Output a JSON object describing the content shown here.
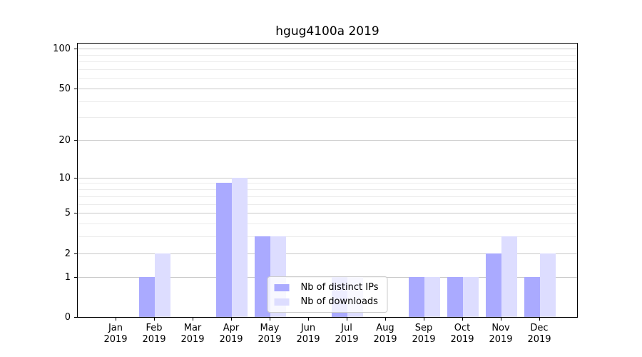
{
  "chart_data": {
    "type": "bar",
    "title": "hgug4100a 2019",
    "xlabel": "",
    "ylabel": "",
    "scale": "log1p",
    "grid": true,
    "legend_position": "lower center",
    "ylim": [
      0,
      112
    ],
    "y_ticks": [
      0,
      1,
      2,
      5,
      10,
      20,
      50,
      100
    ],
    "y_minor_ticks": [
      3,
      4,
      6,
      7,
      8,
      9,
      30,
      40,
      60,
      70,
      80,
      90
    ],
    "categories": [
      "Jan\n2019",
      "Feb\n2019",
      "Mar\n2019",
      "Apr\n2019",
      "May\n2019",
      "Jun\n2019",
      "Jul\n2019",
      "Aug\n2019",
      "Sep\n2019",
      "Oct\n2019",
      "Nov\n2019",
      "Dec\n2019"
    ],
    "series": [
      {
        "name": "Nb of distinct IPs",
        "color": "#aaaaff",
        "values": [
          0,
          1,
          0,
          9,
          3,
          0,
          1,
          0,
          1,
          1,
          2,
          1
        ]
      },
      {
        "name": "Nb of downloads",
        "color": "#ddddff",
        "values": [
          0,
          2,
          0,
          10,
          3,
          0,
          1,
          0,
          1,
          1,
          3,
          2
        ]
      }
    ]
  }
}
